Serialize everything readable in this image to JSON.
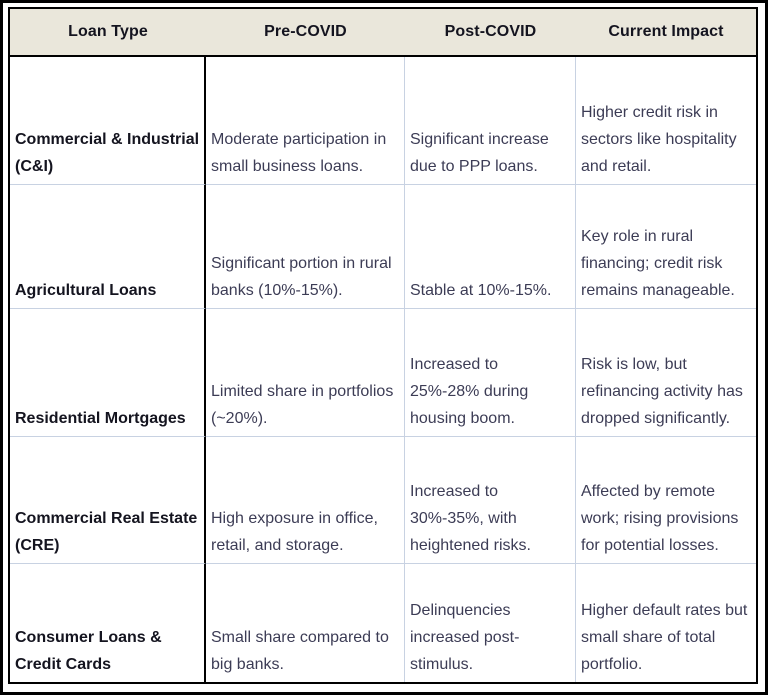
{
  "colors": {
    "header_bg": "#eae7db",
    "header_text": "#14141f",
    "body_text": "#3c3c55",
    "grid_black": "#000000",
    "grid_light": "#c8d2e2",
    "frame": "#000000"
  },
  "table": {
    "headers": [
      "Loan Type",
      "Pre-COVID",
      "Post-COVID",
      "Current Impact"
    ],
    "rows": [
      {
        "loan_type": "Commercial & Industrial (C&I)",
        "pre_covid": "Moderate participation in small business loans.",
        "post_covid": "Significant increase due to PPP loans.",
        "current_impact": "Higher credit risk in sectors like hospitality and retail."
      },
      {
        "loan_type": "Agricultural Loans",
        "pre_covid": "Significant portion in rural banks (10%-15%).",
        "post_covid": "Stable at 10%-15%.",
        "current_impact": "Key role in rural financing; credit risk remains manageable."
      },
      {
        "loan_type": "Residential Mortgages",
        "pre_covid": "Limited share in portfolios (~20%).",
        "post_covid": "Increased to 25%-28% during housing boom.",
        "current_impact": "Risk is low, but refinancing activity has dropped significantly."
      },
      {
        "loan_type": "Commercial Real Estate (CRE)",
        "pre_covid": "High exposure in office, retail, and storage.",
        "post_covid": "Increased to 30%-35%, with heightened risks.",
        "current_impact": "Affected by remote work; rising provisions for potential losses."
      },
      {
        "loan_type": "Consumer Loans & Credit Cards",
        "pre_covid": "Small share compared to big banks.",
        "post_covid": "Delinquencies increased post-stimulus.",
        "current_impact": "Higher default rates but small share of total portfolio."
      }
    ]
  }
}
